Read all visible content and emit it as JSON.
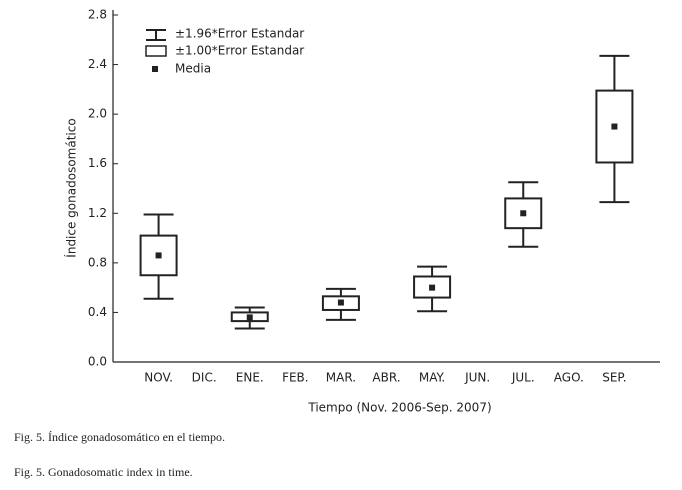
{
  "chart_data": {
    "type": "box",
    "y_label": "Índice gonadosomático",
    "x_label": "Tiempo (Nov. 2006-Sep. 2007)",
    "categories": [
      "NOV.",
      "DIC.",
      "ENE.",
      "FEB.",
      "MAR.",
      "ABR.",
      "MAY.",
      "JUN.",
      "JUL.",
      "AGO.",
      "SEP."
    ],
    "mean": [
      0.86,
      null,
      0.36,
      null,
      0.48,
      null,
      0.6,
      null,
      1.2,
      null,
      1.9
    ],
    "se_low": [
      0.7,
      null,
      0.33,
      null,
      0.42,
      null,
      0.52,
      null,
      1.08,
      null,
      1.61
    ],
    "se_high": [
      1.02,
      null,
      0.4,
      null,
      0.53,
      null,
      0.69,
      null,
      1.32,
      null,
      2.19
    ],
    "ci_low": [
      0.51,
      null,
      0.27,
      null,
      0.34,
      null,
      0.41,
      null,
      0.93,
      null,
      1.29
    ],
    "ci_high": [
      1.19,
      null,
      0.44,
      null,
      0.59,
      null,
      0.77,
      null,
      1.45,
      null,
      2.47
    ],
    "legend": [
      "±1.96*Error Estandar",
      "±1.00*Error Estandar",
      "Media"
    ],
    "color": "#222222",
    "ylim": [
      0,
      2.8
    ],
    "yticks": [
      {
        "value": 0,
        "label": "0.0"
      },
      0.4,
      0.8,
      1.2,
      1.6,
      {
        "value": 2,
        "label": "2.0"
      },
      2.4,
      2.8
    ]
  },
  "captions": [
    "Fig. 5. Índice gonadosomático en el tiempo.",
    "Fig. 5. Gonadosomatic index in time."
  ]
}
